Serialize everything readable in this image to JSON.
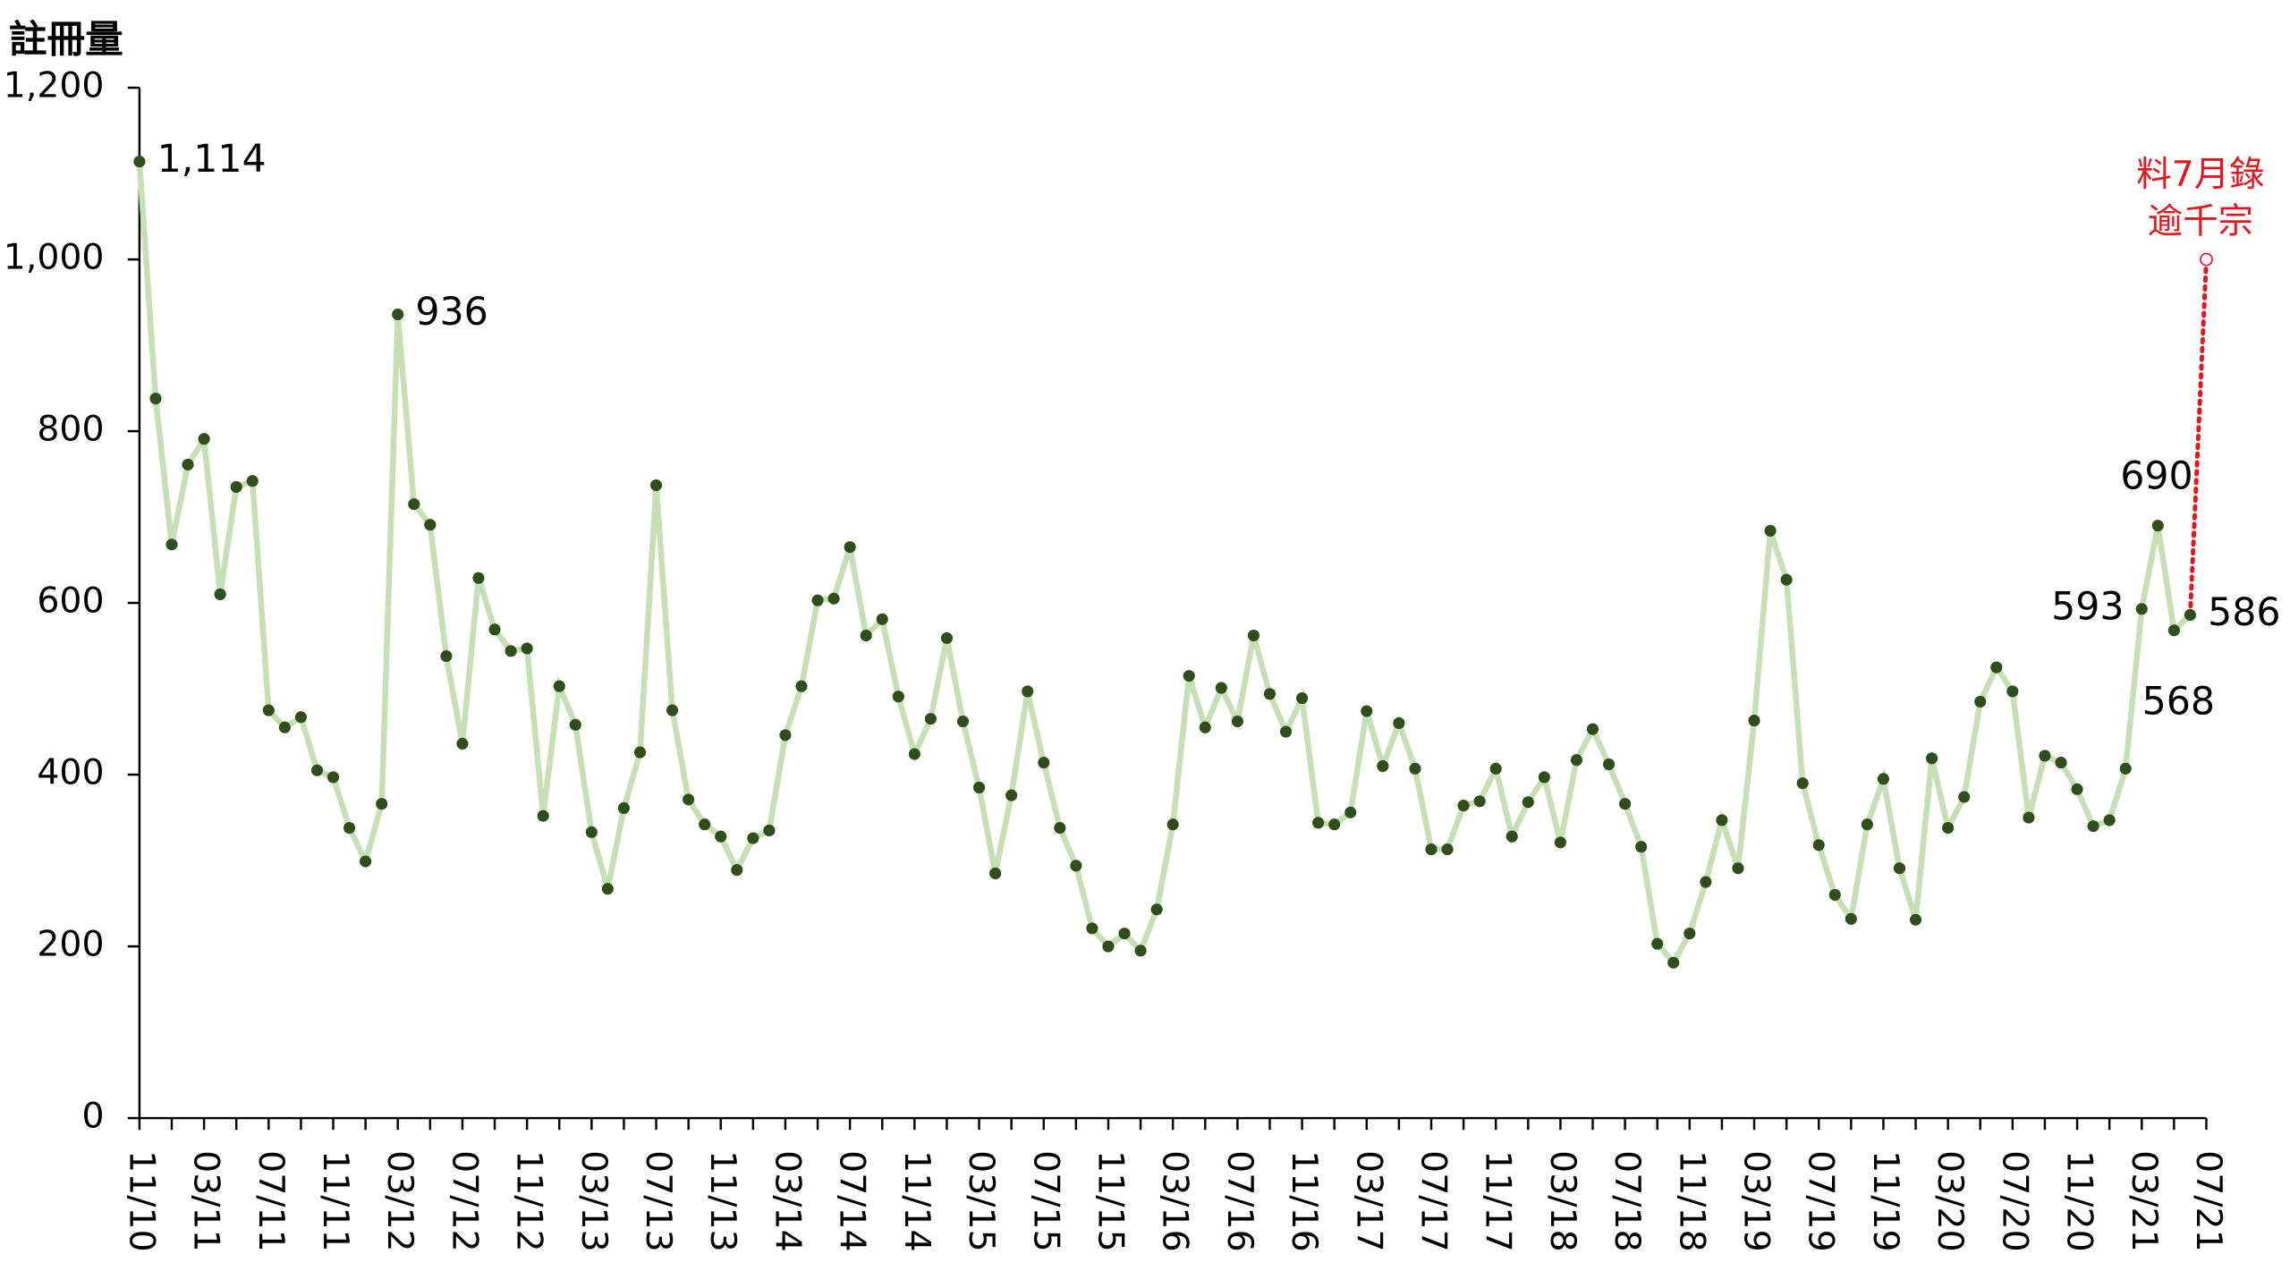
{
  "chart_data": {
    "type": "line",
    "y_label": "註冊量",
    "categories": [
      "11/10",
      null,
      null,
      null,
      "03/11",
      null,
      null,
      null,
      "07/11",
      null,
      null,
      null,
      "11/11",
      null,
      null,
      null,
      "03/12",
      null,
      null,
      null,
      "07/12",
      null,
      null,
      null,
      "11/12",
      null,
      null,
      null,
      "03/13",
      null,
      null,
      null,
      "07/13",
      null,
      null,
      null,
      "11/13",
      null,
      null,
      null,
      "03/14",
      null,
      null,
      null,
      "07/14",
      null,
      null,
      null,
      "11/14",
      null,
      null,
      null,
      "03/15",
      null,
      null,
      null,
      "07/15",
      null,
      null,
      null,
      "11/15",
      null,
      null,
      null,
      "03/16",
      null,
      null,
      null,
      "07/16",
      null,
      null,
      null,
      "11/16",
      null,
      null,
      null,
      "03/17",
      null,
      null,
      null,
      "07/17",
      null,
      null,
      null,
      "11/17",
      null,
      null,
      null,
      "03/18",
      null,
      null,
      null,
      "07/18",
      null,
      null,
      null,
      "11/18",
      null,
      null,
      null,
      "03/19",
      null,
      null,
      null,
      "07/19",
      null,
      null,
      null,
      "11/19",
      null,
      null,
      null,
      "03/20",
      null,
      null,
      null,
      "07/20",
      null,
      null,
      null,
      "11/20",
      null,
      null,
      null,
      "03/21",
      null,
      null,
      null,
      "07/21"
    ],
    "series": [
      {
        "color": "#c5e0b4",
        "marker_color": "#2f4f1a",
        "values": [
          1114,
          838,
          668,
          761,
          791,
          610,
          735,
          742,
          475,
          455,
          467,
          405,
          397,
          338,
          299,
          366,
          936,
          715,
          691,
          538,
          436,
          629,
          569,
          544,
          547,
          352,
          503,
          458,
          333,
          267,
          361,
          426,
          737,
          475,
          371,
          342,
          328,
          289,
          326,
          335,
          446,
          503,
          603,
          605,
          665,
          562,
          581,
          491,
          424,
          465,
          559,
          462,
          385,
          285,
          376,
          497,
          414,
          338,
          294,
          221,
          200,
          215,
          195,
          243,
          342,
          515,
          455,
          501,
          462,
          562,
          494,
          450,
          489,
          344,
          342,
          356,
          474,
          410,
          460,
          407,
          313,
          313,
          364,
          369,
          407,
          328,
          368,
          397,
          321,
          417,
          453,
          412,
          366,
          316,
          203,
          181,
          215,
          275,
          347,
          291,
          463,
          684,
          627,
          390,
          318,
          260,
          232,
          342,
          395,
          291,
          231,
          419,
          338,
          374,
          485,
          525,
          497,
          350,
          422,
          414,
          383,
          340,
          347,
          407,
          593,
          690,
          568,
          586,
          null
        ],
        "value_labels": [
          "1,114",
          null,
          null,
          null,
          null,
          null,
          null,
          null,
          null,
          null,
          null,
          null,
          null,
          null,
          null,
          null,
          "936",
          null,
          null,
          null,
          null,
          null,
          null,
          null,
          null,
          null,
          null,
          null,
          null,
          null,
          null,
          null,
          null,
          null,
          null,
          null,
          null,
          null,
          null,
          null,
          null,
          null,
          null,
          null,
          null,
          null,
          null,
          null,
          null,
          null,
          null,
          null,
          null,
          null,
          null,
          null,
          null,
          null,
          null,
          null,
          null,
          null,
          null,
          null,
          null,
          null,
          null,
          null,
          null,
          null,
          null,
          null,
          null,
          null,
          null,
          null,
          null,
          null,
          null,
          null,
          null,
          null,
          null,
          null,
          null,
          null,
          null,
          null,
          null,
          null,
          null,
          null,
          null,
          null,
          null,
          null,
          null,
          null,
          null,
          null,
          null,
          null,
          null,
          null,
          null,
          null,
          null,
          null,
          null,
          null,
          null,
          null,
          null,
          null,
          null,
          null,
          null,
          null,
          null,
          null,
          null,
          null,
          null,
          null,
          "593",
          "690",
          "568",
          "586",
          null
        ]
      }
    ],
    "annotation": {
      "lines": [
        "料7月錄",
        "逾千宗"
      ],
      "value": 1000,
      "color": "#e8141e"
    },
    "ylim": [
      0,
      1200
    ],
    "yticks": [
      0,
      200,
      400,
      600,
      800,
      {
        "value": 1000,
        "label": "1,000"
      },
      {
        "value": 1200,
        "label": "1,200"
      }
    ]
  }
}
